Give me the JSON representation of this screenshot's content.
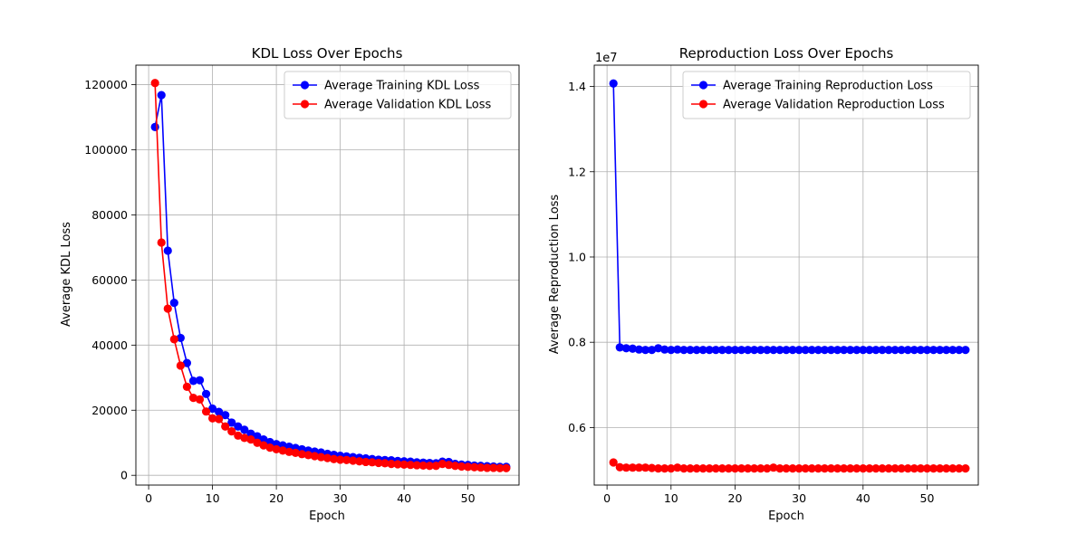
{
  "chart_data": [
    {
      "type": "line",
      "title": "KDL Loss Over Epochs",
      "xlabel": "Epoch",
      "ylabel": "Average KDL Loss",
      "xlim": [
        -2,
        58
      ],
      "ylim": [
        -3000,
        126000
      ],
      "xticks": [
        0,
        10,
        20,
        30,
        40,
        50
      ],
      "yticks": [
        0,
        20000,
        40000,
        60000,
        80000,
        100000,
        120000
      ],
      "xtick_labels": [
        "0",
        "10",
        "20",
        "30",
        "40",
        "50"
      ],
      "ytick_labels": [
        "0",
        "20000",
        "40000",
        "60000",
        "80000",
        "100000",
        "120000"
      ],
      "offset_label": "",
      "grid": true,
      "legend_position": "upper right",
      "x": [
        1,
        2,
        3,
        4,
        5,
        6,
        7,
        8,
        9,
        10,
        11,
        12,
        13,
        14,
        15,
        16,
        17,
        18,
        19,
        20,
        21,
        22,
        23,
        24,
        25,
        26,
        27,
        28,
        29,
        30,
        31,
        32,
        33,
        34,
        35,
        36,
        37,
        38,
        39,
        40,
        41,
        42,
        43,
        44,
        45,
        46,
        47,
        48,
        49,
        50,
        51,
        52,
        53,
        54,
        55,
        56
      ],
      "series": [
        {
          "name": "Average Training KDL Loss",
          "color": "#0000ff",
          "values": [
            107000,
            116800,
            69000,
            53000,
            42200,
            34500,
            29000,
            29200,
            25000,
            20500,
            19500,
            18500,
            16200,
            15000,
            14000,
            12800,
            12000,
            11000,
            10200,
            9600,
            9200,
            8800,
            8400,
            8000,
            7600,
            7300,
            7000,
            6600,
            6300,
            6000,
            5800,
            5600,
            5400,
            5200,
            5000,
            4800,
            4700,
            4600,
            4400,
            4300,
            4200,
            4000,
            3900,
            3800,
            3700,
            4200,
            4100,
            3500,
            3300,
            3200,
            3000,
            2900,
            2800,
            2700,
            2600,
            2600
          ]
        },
        {
          "name": "Average Validation KDL Loss",
          "color": "#ff0000",
          "values": [
            120500,
            71500,
            51200,
            41800,
            33700,
            27200,
            23800,
            23300,
            19600,
            17500,
            17300,
            15000,
            13500,
            12200,
            11500,
            11000,
            10000,
            9200,
            8500,
            8000,
            7600,
            7200,
            6900,
            6500,
            6200,
            5900,
            5600,
            5300,
            5000,
            4800,
            4700,
            4500,
            4300,
            4100,
            4000,
            3800,
            3700,
            3500,
            3400,
            3300,
            3200,
            3100,
            3000,
            2900,
            2900,
            3500,
            3200,
            2900,
            2700,
            2600,
            2500,
            2400,
            2300,
            2300,
            2200,
            2200
          ]
        }
      ]
    },
    {
      "type": "line",
      "title": "Reproduction Loss Over Epochs",
      "xlabel": "Epoch",
      "ylabel": "Average Reproduction Loss",
      "xlim": [
        -2,
        58
      ],
      "ylim": [
        0.465,
        1.45
      ],
      "xticks": [
        0,
        10,
        20,
        30,
        40,
        50
      ],
      "yticks": [
        0.6,
        0.8,
        1.0,
        1.2,
        1.4
      ],
      "xtick_labels": [
        "0",
        "10",
        "20",
        "30",
        "40",
        "50"
      ],
      "ytick_labels": [
        "0.6",
        "0.8",
        "1.0",
        "1.2",
        "1.4"
      ],
      "offset_label": "1e7",
      "grid": true,
      "legend_position": "upper right",
      "x": [
        1,
        2,
        3,
        4,
        5,
        6,
        7,
        8,
        9,
        10,
        11,
        12,
        13,
        14,
        15,
        16,
        17,
        18,
        19,
        20,
        21,
        22,
        23,
        24,
        25,
        26,
        27,
        28,
        29,
        30,
        31,
        32,
        33,
        34,
        35,
        36,
        37,
        38,
        39,
        40,
        41,
        42,
        43,
        44,
        45,
        46,
        47,
        48,
        49,
        50,
        51,
        52,
        53,
        54,
        55,
        56
      ],
      "series": [
        {
          "name": "Average Training Reproduction Loss",
          "color": "#0000ff",
          "values": [
            1.407,
            0.788,
            0.786,
            0.785,
            0.783,
            0.782,
            0.782,
            0.786,
            0.783,
            0.782,
            0.783,
            0.782,
            0.782,
            0.782,
            0.782,
            0.782,
            0.782,
            0.782,
            0.782,
            0.782,
            0.782,
            0.782,
            0.782,
            0.782,
            0.782,
            0.782,
            0.782,
            0.782,
            0.782,
            0.782,
            0.782,
            0.782,
            0.782,
            0.782,
            0.782,
            0.782,
            0.782,
            0.782,
            0.782,
            0.782,
            0.782,
            0.782,
            0.782,
            0.782,
            0.782,
            0.782,
            0.782,
            0.782,
            0.782,
            0.782,
            0.782,
            0.782,
            0.782,
            0.782,
            0.782,
            0.782
          ]
        },
        {
          "name": "Average Validation Reproduction Loss",
          "color": "#ff0000",
          "values": [
            0.518,
            0.507,
            0.506,
            0.506,
            0.506,
            0.506,
            0.505,
            0.504,
            0.504,
            0.504,
            0.506,
            0.504,
            0.504,
            0.504,
            0.504,
            0.504,
            0.504,
            0.504,
            0.504,
            0.504,
            0.504,
            0.504,
            0.504,
            0.504,
            0.504,
            0.506,
            0.504,
            0.504,
            0.504,
            0.504,
            0.504,
            0.504,
            0.504,
            0.504,
            0.504,
            0.504,
            0.504,
            0.504,
            0.504,
            0.504,
            0.504,
            0.504,
            0.504,
            0.504,
            0.504,
            0.504,
            0.504,
            0.504,
            0.504,
            0.504,
            0.504,
            0.504,
            0.504,
            0.504,
            0.504,
            0.504
          ]
        }
      ]
    }
  ]
}
